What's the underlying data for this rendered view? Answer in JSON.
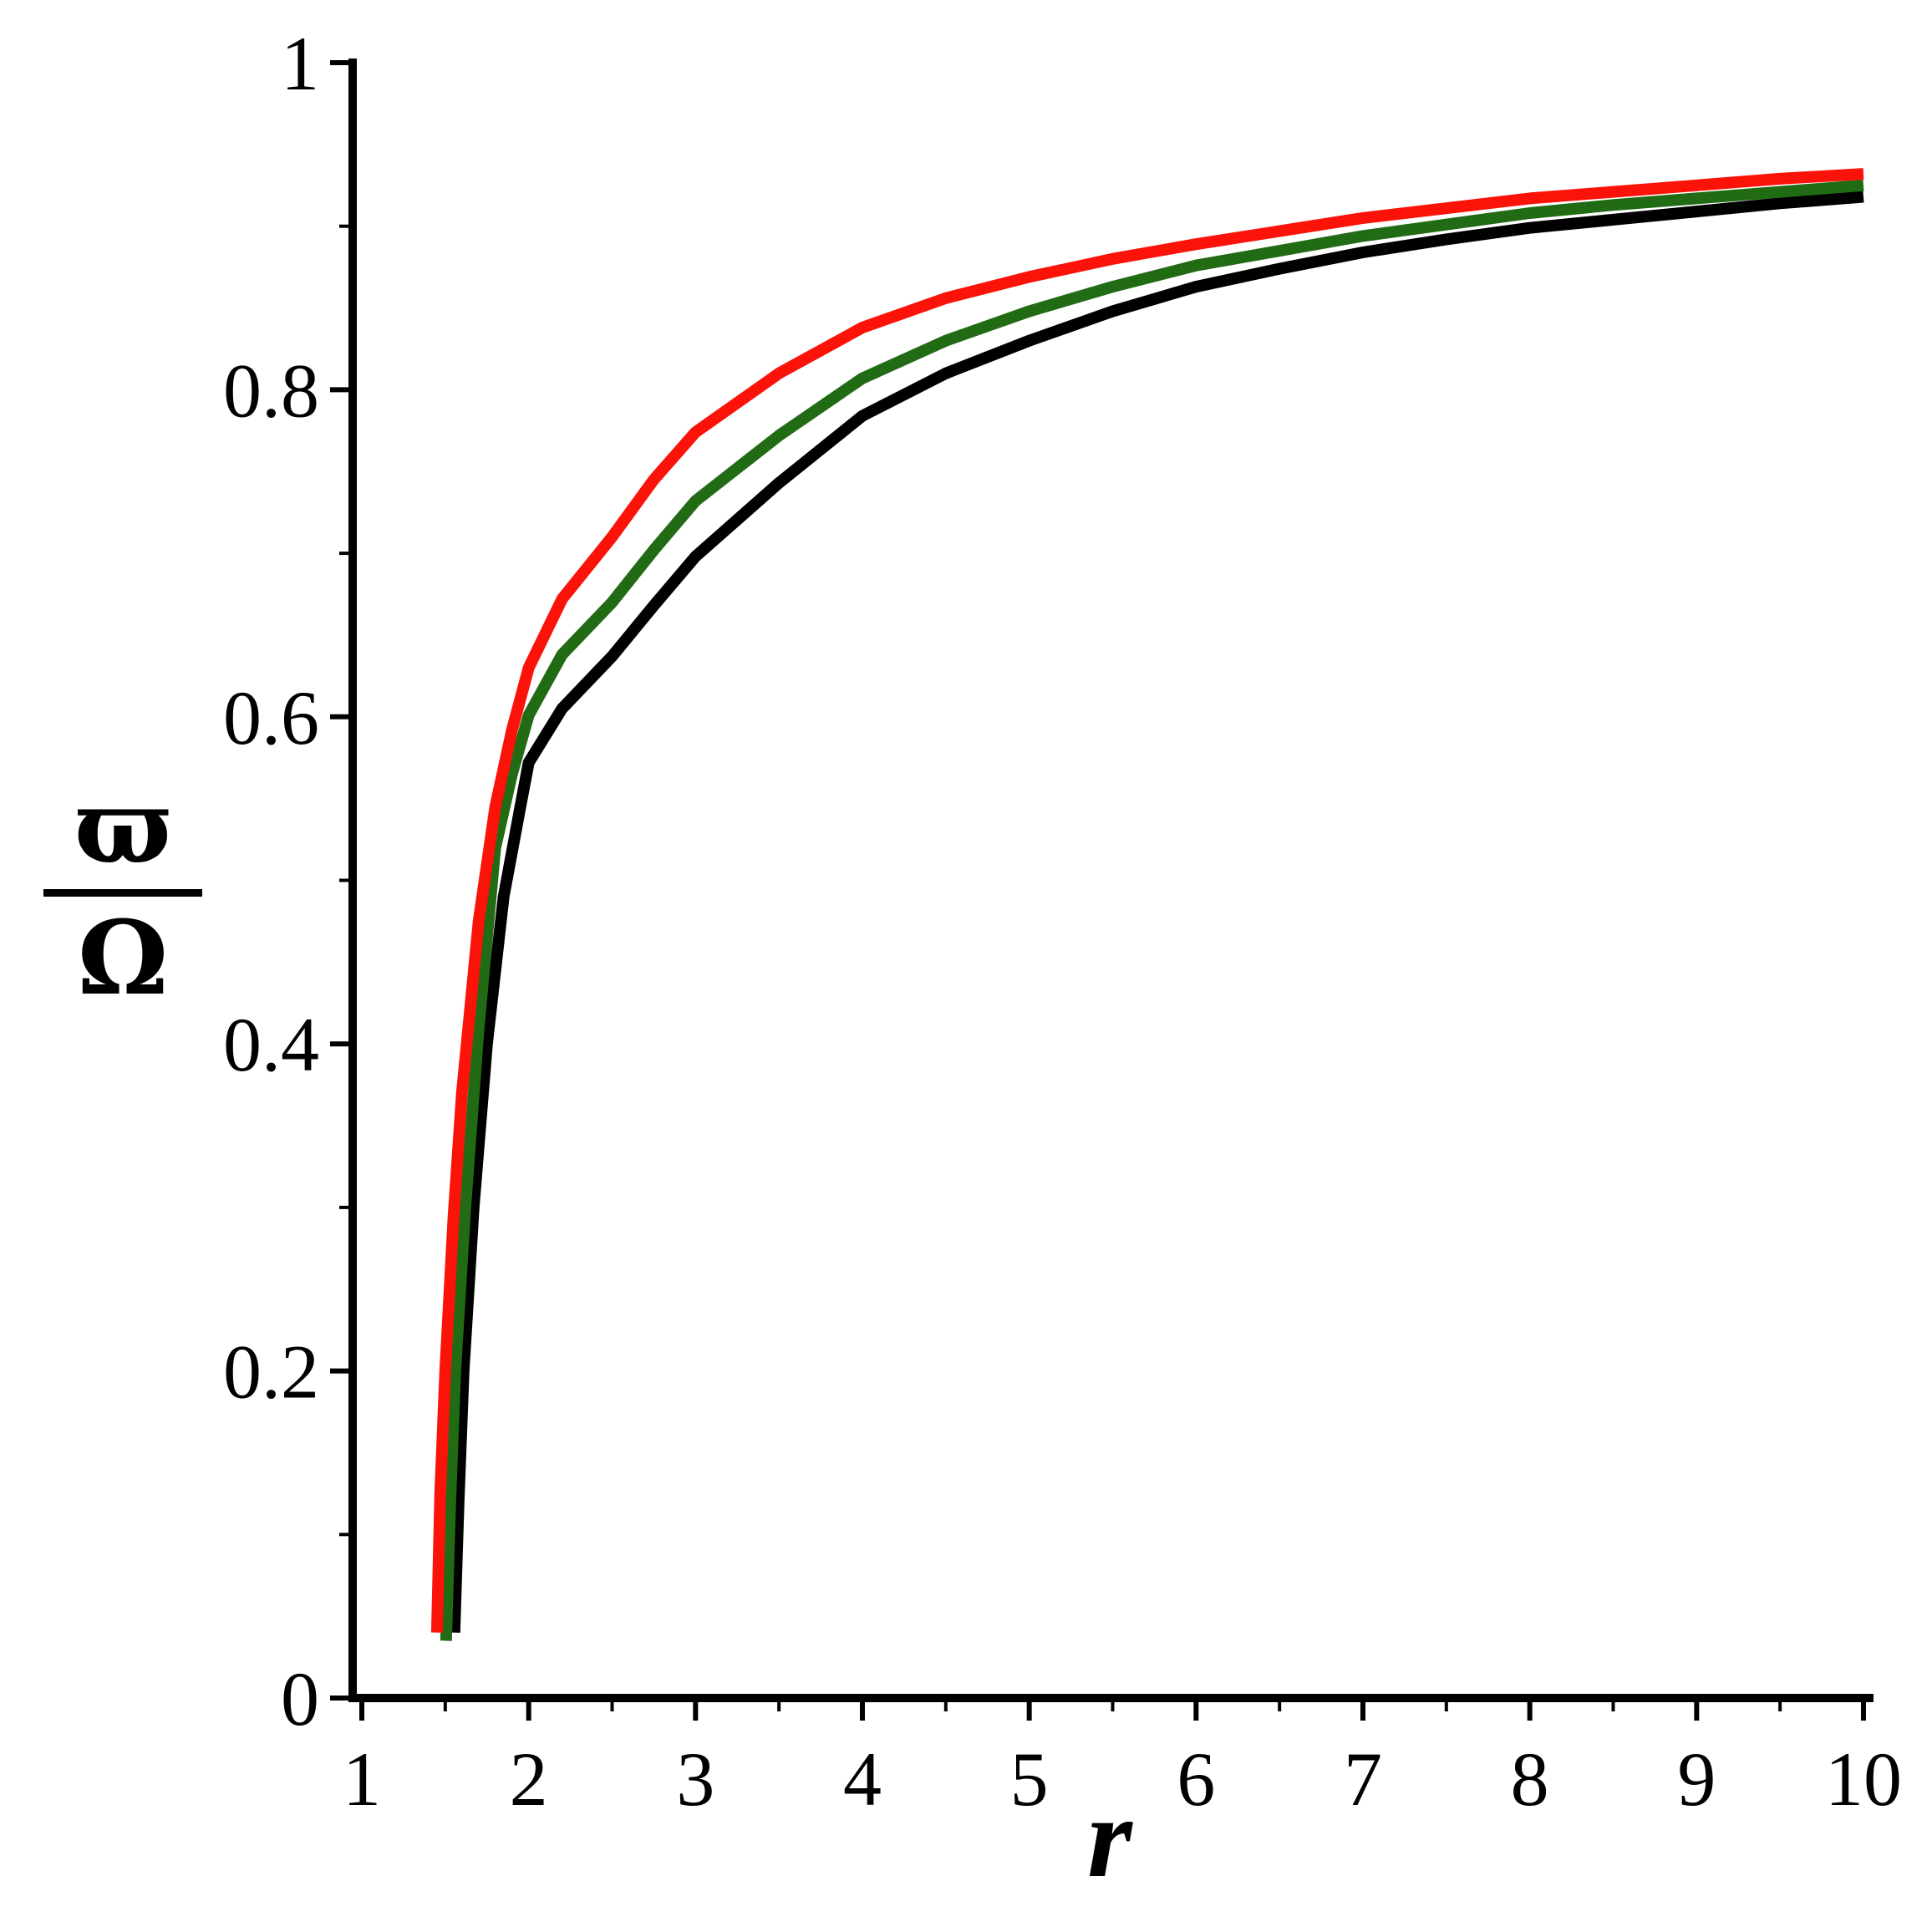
{
  "chart_data": {
    "type": "line",
    "title": "",
    "xlabel": "r",
    "ylabel": "ϖ/Ω",
    "ylabel_numerator": "ϖ",
    "ylabel_denominator": "Ω",
    "xlim": [
      1,
      10
    ],
    "ylim": [
      0,
      1
    ],
    "grid": false,
    "legend_position": "none",
    "background_color": "#ffffff",
    "axis_color": "#000000",
    "x_major_ticks": [
      1,
      2,
      3,
      4,
      5,
      6,
      7,
      8,
      9,
      10
    ],
    "x_major_tick_labels": [
      "1",
      "2",
      "3",
      "4",
      "5",
      "6",
      "7",
      "8",
      "9",
      "10"
    ],
    "x_minor_ticks": [
      1.5,
      2.5,
      3.5,
      4.5,
      5.5,
      6.5,
      7.5,
      8.5,
      9.5
    ],
    "y_major_ticks": [
      0,
      0.2,
      0.4,
      0.6,
      0.8,
      1
    ],
    "y_major_tick_labels": [
      "0",
      "0.2",
      "0.4",
      "0.6",
      "0.8",
      "1"
    ],
    "y_minor_ticks": [
      0.1,
      0.3,
      0.5,
      0.7,
      0.9
    ],
    "series": [
      {
        "name": "black-curve",
        "color": "#000000",
        "line_width": 14,
        "points": [
          [
            1.555,
            0.04
          ],
          [
            1.58,
            0.12
          ],
          [
            1.61,
            0.2
          ],
          [
            1.67,
            0.3
          ],
          [
            1.75,
            0.4
          ],
          [
            1.85,
            0.49
          ],
          [
            1.95,
            0.545
          ],
          [
            2.0,
            0.572
          ],
          [
            2.2,
            0.605
          ],
          [
            2.5,
            0.637
          ],
          [
            2.75,
            0.668
          ],
          [
            3.0,
            0.698
          ],
          [
            3.5,
            0.743
          ],
          [
            4.0,
            0.784
          ],
          [
            4.5,
            0.81
          ],
          [
            5.0,
            0.83
          ],
          [
            5.5,
            0.848
          ],
          [
            6.0,
            0.863
          ],
          [
            6.5,
            0.874
          ],
          [
            7.0,
            0.884
          ],
          [
            7.5,
            0.892
          ],
          [
            8.0,
            0.899
          ],
          [
            8.5,
            0.904
          ],
          [
            9.0,
            0.909
          ],
          [
            9.5,
            0.914
          ],
          [
            10.0,
            0.918
          ]
        ]
      },
      {
        "name": "green-curve",
        "color": "#226b15",
        "line_width": 14,
        "points": [
          [
            1.505,
            0.035
          ],
          [
            1.53,
            0.12
          ],
          [
            1.56,
            0.2
          ],
          [
            1.62,
            0.3
          ],
          [
            1.7,
            0.41
          ],
          [
            1.8,
            0.52
          ],
          [
            1.9,
            0.565
          ],
          [
            2.0,
            0.601
          ],
          [
            2.2,
            0.638
          ],
          [
            2.5,
            0.67
          ],
          [
            2.75,
            0.702
          ],
          [
            3.0,
            0.732
          ],
          [
            3.5,
            0.772
          ],
          [
            4.0,
            0.807
          ],
          [
            4.5,
            0.83
          ],
          [
            5.0,
            0.848
          ],
          [
            5.5,
            0.863
          ],
          [
            6.0,
            0.876
          ],
          [
            6.5,
            0.885
          ],
          [
            7.0,
            0.894
          ],
          [
            7.5,
            0.901
          ],
          [
            8.0,
            0.908
          ],
          [
            8.5,
            0.913
          ],
          [
            9.0,
            0.917
          ],
          [
            9.5,
            0.921
          ],
          [
            10.0,
            0.925
          ]
        ]
      },
      {
        "name": "red-curve",
        "color": "#fb1208",
        "line_width": 14,
        "points": [
          [
            1.45,
            0.04
          ],
          [
            1.47,
            0.125
          ],
          [
            1.5,
            0.2
          ],
          [
            1.55,
            0.295
          ],
          [
            1.6,
            0.37
          ],
          [
            1.7,
            0.475
          ],
          [
            1.8,
            0.545
          ],
          [
            1.9,
            0.592
          ],
          [
            2.0,
            0.63
          ],
          [
            2.2,
            0.672
          ],
          [
            2.5,
            0.71
          ],
          [
            2.75,
            0.745
          ],
          [
            3.0,
            0.774
          ],
          [
            3.5,
            0.81
          ],
          [
            4.0,
            0.838
          ],
          [
            4.5,
            0.856
          ],
          [
            5.0,
            0.869
          ],
          [
            5.5,
            0.88
          ],
          [
            6.0,
            0.889
          ],
          [
            6.5,
            0.897
          ],
          [
            7.0,
            0.905
          ],
          [
            7.5,
            0.911
          ],
          [
            8.0,
            0.917
          ],
          [
            8.5,
            0.921
          ],
          [
            9.0,
            0.925
          ],
          [
            9.5,
            0.929
          ],
          [
            10.0,
            0.932
          ]
        ]
      }
    ]
  }
}
